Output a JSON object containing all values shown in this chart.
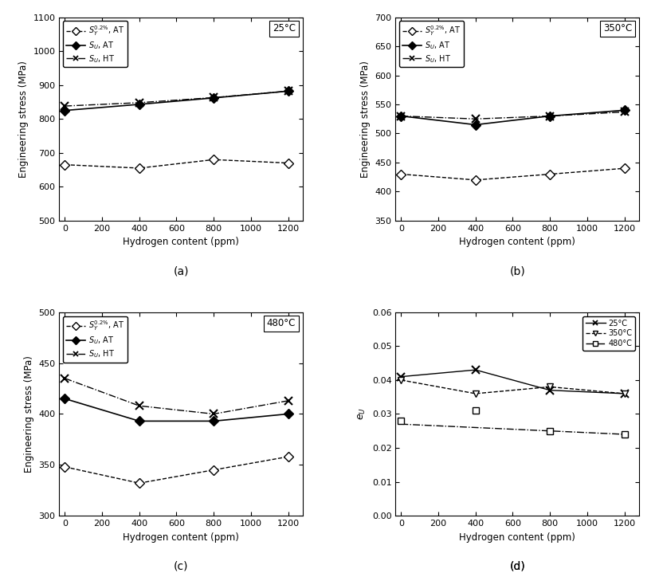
{
  "x": [
    0,
    400,
    800,
    1200
  ],
  "panel_a": {
    "title": "25°C",
    "SY_AT": [
      665,
      655,
      680,
      670
    ],
    "SU_AT": [
      825,
      843,
      862,
      882
    ],
    "SU_HT": [
      838,
      848,
      863,
      882
    ],
    "ylim": [
      500,
      1100
    ],
    "yticks": [
      500,
      600,
      700,
      800,
      900,
      1000,
      1100
    ]
  },
  "panel_b": {
    "title": "350°C",
    "SY_AT": [
      430,
      420,
      430,
      440
    ],
    "SU_AT": [
      530,
      515,
      530,
      540
    ],
    "SU_HT": [
      530,
      525,
      530,
      537
    ],
    "ylim": [
      350,
      700
    ],
    "yticks": [
      350,
      400,
      450,
      500,
      550,
      600,
      650,
      700
    ]
  },
  "panel_c": {
    "title": "480°C",
    "SY_AT": [
      348,
      332,
      345,
      358
    ],
    "SU_AT": [
      415,
      393,
      393,
      400
    ],
    "SU_HT": [
      435,
      408,
      400,
      413
    ],
    "ylim": [
      300,
      500
    ],
    "yticks": [
      300,
      350,
      400,
      450,
      500
    ]
  },
  "panel_d": {
    "25C_line": [
      0.041,
      0.043,
      0.037,
      0.036
    ],
    "25C_pts": [
      0.041,
      0.043,
      0.037,
      0.036
    ],
    "350C_line": [
      0.04,
      0.036,
      0.038,
      0.036
    ],
    "350C_pts": [
      0.04,
      0.036,
      0.038,
      0.036
    ],
    "480C_line": [
      0.027,
      0.026,
      0.025,
      0.024
    ],
    "480C_pts": [
      0.028,
      0.031,
      0.025,
      0.024
    ],
    "ylim": [
      0,
      0.06
    ],
    "yticks": [
      0,
      0.01,
      0.02,
      0.03,
      0.04,
      0.05,
      0.06
    ]
  },
  "xlabel": "Hydrogen content (ppm)",
  "ylabel_stress": "Engineering stress (MPa)",
  "xlim": [
    -30,
    1280
  ],
  "xticks": [
    0,
    200,
    400,
    600,
    800,
    1000,
    1200
  ]
}
